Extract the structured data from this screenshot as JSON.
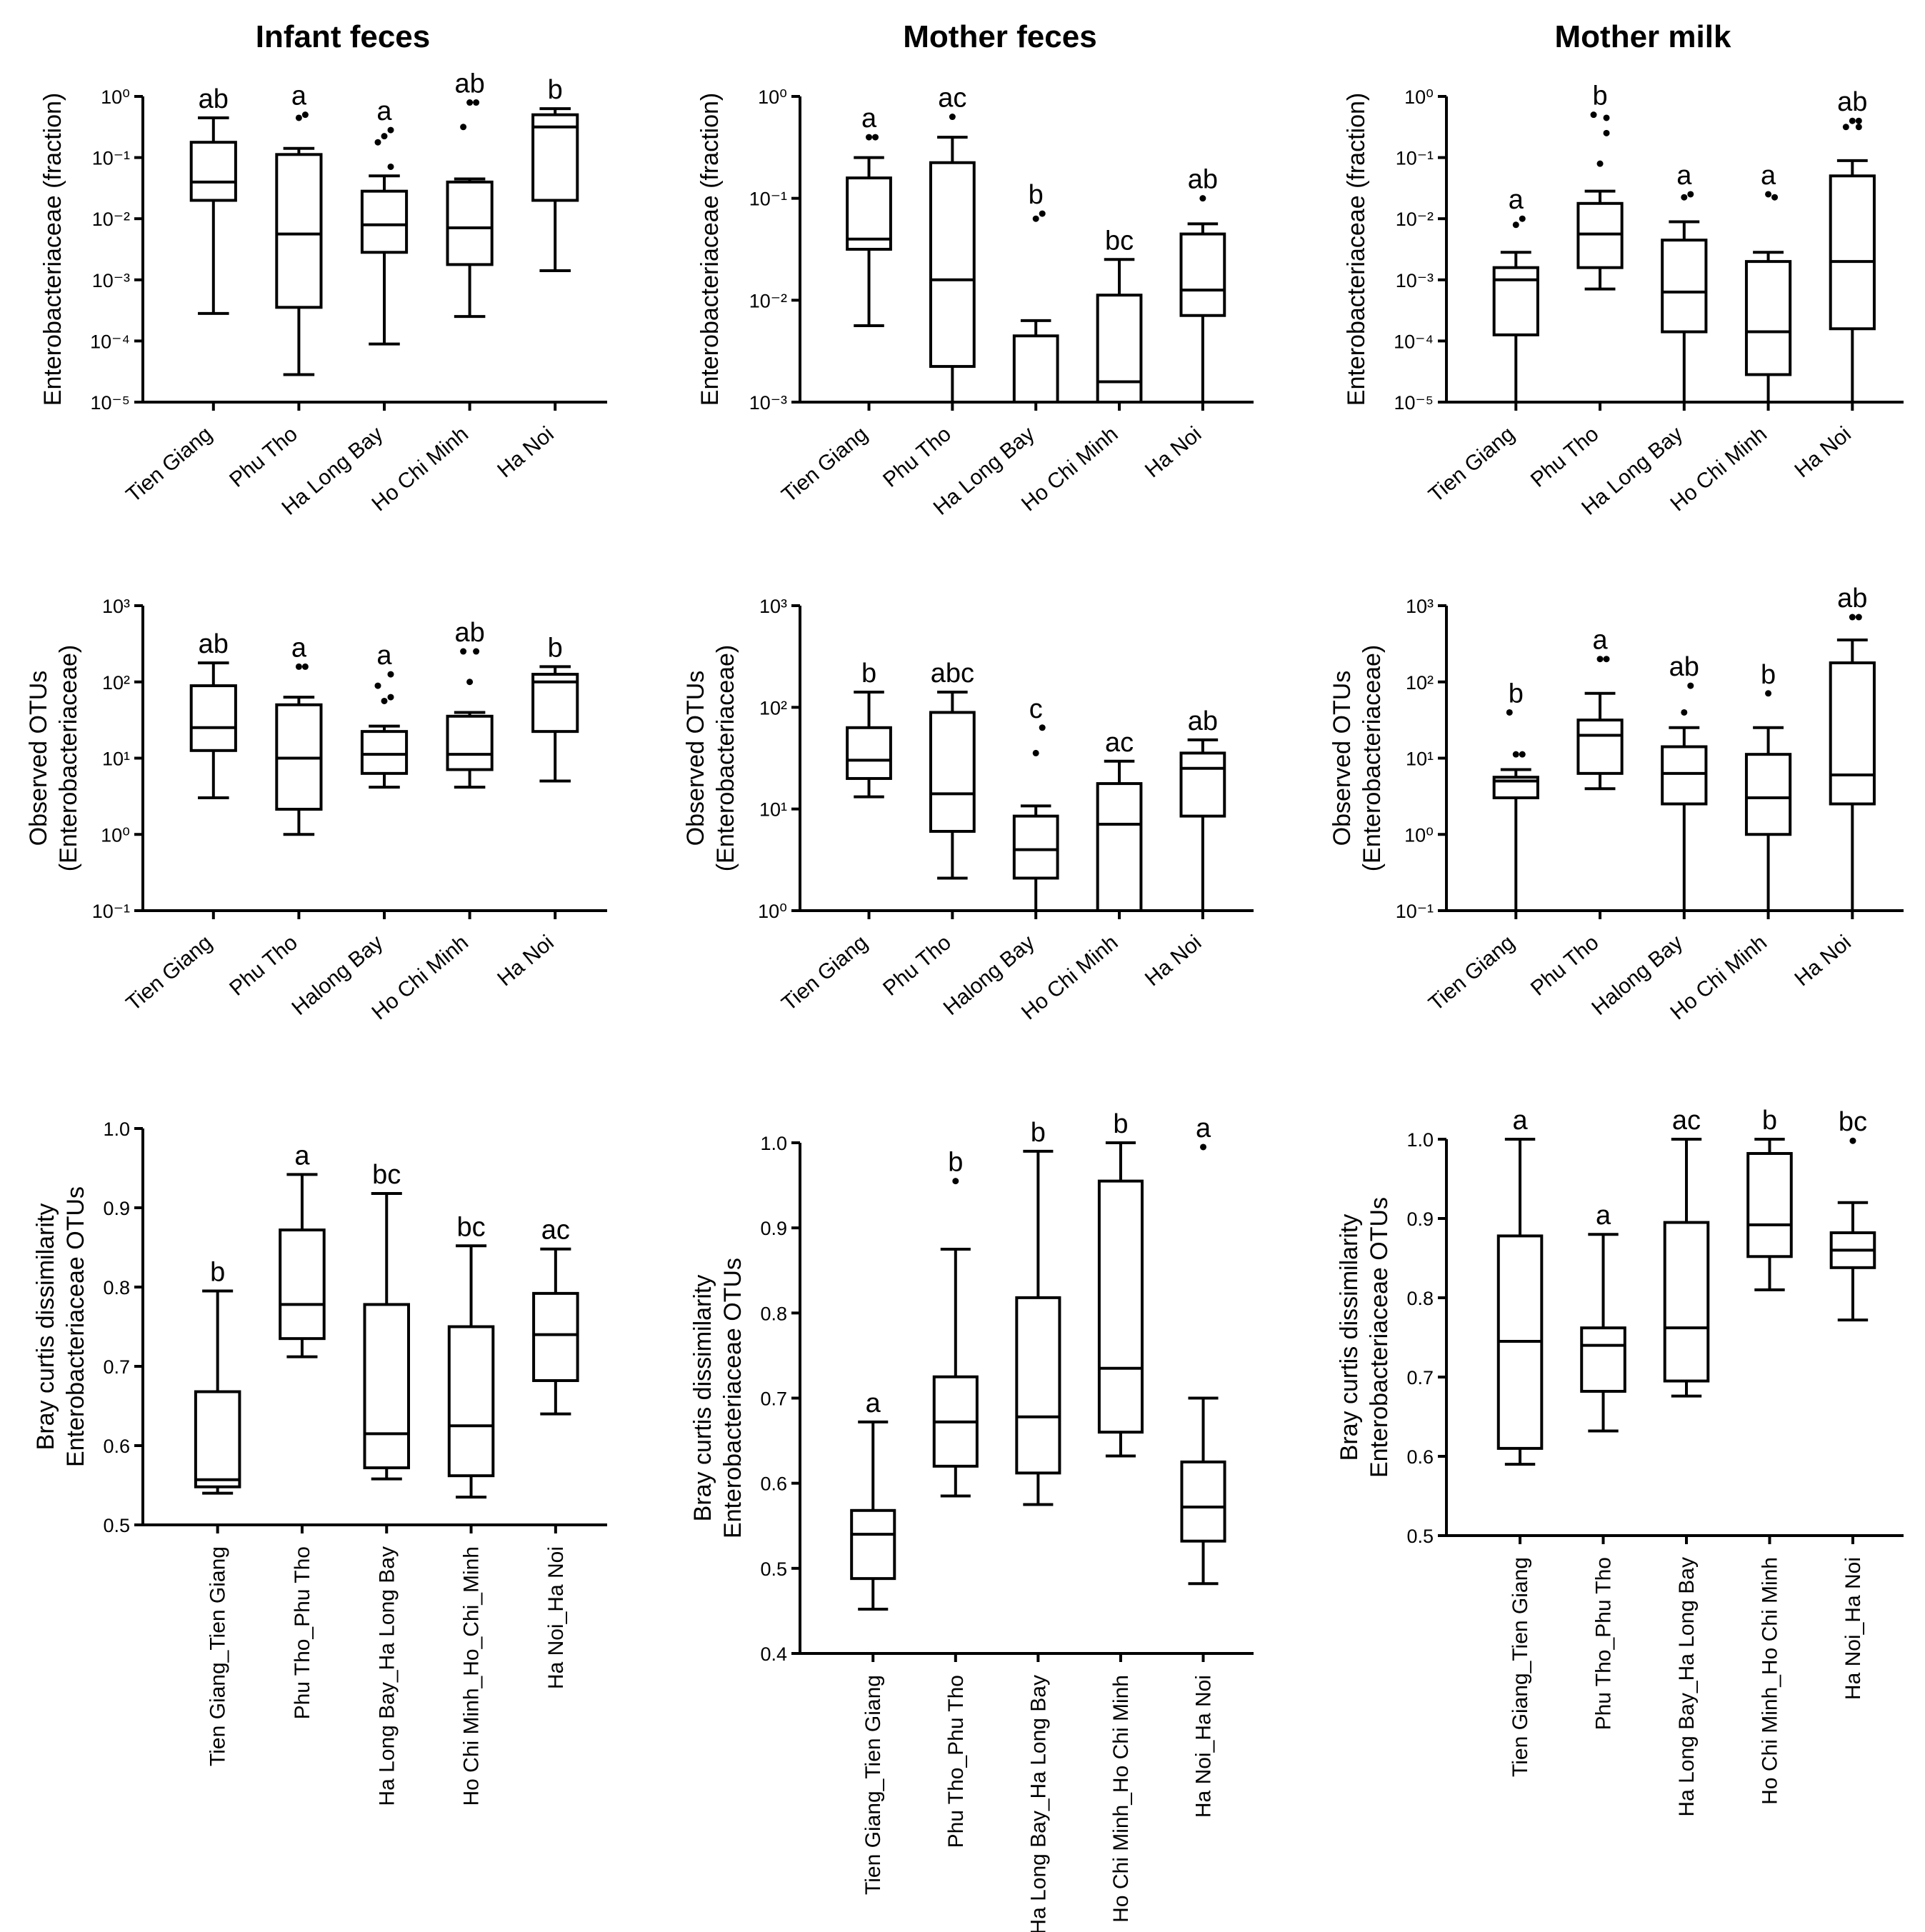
{
  "figure": {
    "column_titles": [
      "Infant feces",
      "Mother feces",
      "Mother milk"
    ]
  },
  "chart_data": [
    {
      "type": "box",
      "row": 0,
      "col": 0,
      "title": "Infant feces",
      "scale": "log",
      "ylabel": [
        "Enterobacteriaceae (fraction)"
      ],
      "ylabel_italic_words": [
        "Enterobacteriaceae"
      ],
      "ylim_exp": [
        -5,
        0
      ],
      "yticks": [
        {
          "v": 0,
          "label": "10⁰"
        },
        {
          "v": -1,
          "label": "10⁻¹"
        },
        {
          "v": -2,
          "label": "10⁻²"
        },
        {
          "v": -3,
          "label": "10⁻³"
        },
        {
          "v": -4,
          "label": "10⁻⁴"
        },
        {
          "v": -5,
          "label": "10⁻⁵"
        }
      ],
      "categories": [
        "Tien Giang",
        "Phu Tho",
        "Ha Long Bay",
        "Ho Chi Minh",
        "Ha Noi"
      ],
      "label_style": "diag",
      "boxes": [
        {
          "min": -3.55,
          "q1": -1.7,
          "median": -1.4,
          "q3": -0.75,
          "max": -0.35,
          "outliers": [],
          "letter": "ab"
        },
        {
          "min": -4.55,
          "q1": -3.45,
          "median": -2.25,
          "q3": -0.95,
          "max": -0.85,
          "outliers": [
            -0.35,
            -0.3
          ],
          "letter": "a"
        },
        {
          "min": -4.05,
          "q1": -2.55,
          "median": -2.1,
          "q3": -1.55,
          "max": -1.3,
          "outliers": [
            -0.65,
            -0.55,
            -0.75,
            -1.15
          ],
          "letter": "a"
        },
        {
          "min": -3.6,
          "q1": -2.75,
          "median": -2.15,
          "q3": -1.4,
          "max": -1.35,
          "outliers": [
            -0.1,
            -0.1,
            -0.5
          ],
          "letter": "ab"
        },
        {
          "min": -2.85,
          "q1": -1.7,
          "median": -0.5,
          "q3": -0.3,
          "max": -0.2,
          "outliers": [],
          "letter": "b"
        }
      ]
    },
    {
      "type": "box",
      "row": 0,
      "col": 1,
      "title": "Mother feces",
      "scale": "log",
      "ylabel": [
        "Enterobacteriaceae (fraction)"
      ],
      "ylabel_italic_words": [
        "Enterobacteriaceae"
      ],
      "ylim_exp": [
        -3,
        0
      ],
      "yticks": [
        {
          "v": 0,
          "label": "10⁰"
        },
        {
          "v": -1,
          "label": "10⁻¹"
        },
        {
          "v": -2,
          "label": "10⁻²"
        },
        {
          "v": -3,
          "label": "10⁻³"
        }
      ],
      "categories": [
        "Tien Giang",
        "Phu Tho",
        "Ha Long Bay",
        "Ho Chi Minh",
        "Ha Noi"
      ],
      "label_style": "diag",
      "boxes": [
        {
          "min": -2.25,
          "q1": -1.5,
          "median": -1.4,
          "q3": -0.8,
          "max": -0.6,
          "outliers": [
            -0.4,
            -0.4
          ],
          "letter": "a"
        },
        {
          "min": -3.0,
          "q1": -2.65,
          "median": -1.8,
          "q3": -0.65,
          "max": -0.4,
          "outliers": [
            -0.2
          ],
          "letter": "ac"
        },
        {
          "min": -3.0,
          "q1": -3.0,
          "median": -3.0,
          "q3": -2.35,
          "max": -2.2,
          "outliers": [
            -1.2,
            -1.15
          ],
          "letter": "b"
        },
        {
          "min": -3.0,
          "q1": -3.0,
          "median": -2.8,
          "q3": -1.95,
          "max": -1.6,
          "outliers": [],
          "letter": "bc"
        },
        {
          "min": -3.0,
          "q1": -2.15,
          "median": -1.9,
          "q3": -1.35,
          "max": -1.25,
          "outliers": [
            -1.0
          ],
          "letter": "ab"
        }
      ]
    },
    {
      "type": "box",
      "row": 0,
      "col": 2,
      "title": "Mother milk",
      "scale": "log",
      "ylabel": [
        "Enterobacteriaceae (fraction)"
      ],
      "ylabel_italic_words": [
        "Enterobacteriaceae"
      ],
      "ylim_exp": [
        -5,
        0
      ],
      "yticks": [
        {
          "v": 0,
          "label": "10⁰"
        },
        {
          "v": -1,
          "label": "10⁻¹"
        },
        {
          "v": -2,
          "label": "10⁻²"
        },
        {
          "v": -3,
          "label": "10⁻³"
        },
        {
          "v": -4,
          "label": "10⁻⁴"
        },
        {
          "v": -5,
          "label": "10⁻⁵"
        }
      ],
      "categories": [
        "Tien Giang",
        "Phu Tho",
        "Ha Long Bay",
        "Ho Chi Minh",
        "Ha Noi"
      ],
      "label_style": "diag",
      "boxes": [
        {
          "min": -5.0,
          "q1": -3.9,
          "median": -3.0,
          "q3": -2.8,
          "max": -2.55,
          "outliers": [
            -2.1,
            -2.0
          ],
          "letter": "a"
        },
        {
          "min": -3.15,
          "q1": -2.8,
          "median": -2.25,
          "q3": -1.75,
          "max": -1.55,
          "outliers": [
            -1.1,
            -0.35,
            -0.3,
            -0.6
          ],
          "letter": "b"
        },
        {
          "min": -5.0,
          "q1": -3.85,
          "median": -3.2,
          "q3": -2.35,
          "max": -2.05,
          "outliers": [
            -1.65,
            -1.6
          ],
          "letter": "a"
        },
        {
          "min": -5.0,
          "q1": -4.55,
          "median": -3.85,
          "q3": -2.7,
          "max": -2.55,
          "outliers": [
            -1.6,
            -1.65
          ],
          "letter": "a"
        },
        {
          "min": -5.0,
          "q1": -3.8,
          "median": -2.7,
          "q3": -1.3,
          "max": -1.05,
          "outliers": [
            -0.4,
            -0.4,
            -0.5,
            -0.5
          ],
          "letter": "ab"
        }
      ]
    },
    {
      "type": "box",
      "row": 1,
      "col": 0,
      "scale": "log",
      "ylabel": [
        "Observed OTUs",
        "(Enterobacteriaceae)"
      ],
      "ylabel_italic_words": [],
      "ylim_exp": [
        -1,
        3
      ],
      "yticks": [
        {
          "v": 3,
          "label": "10³"
        },
        {
          "v": 2,
          "label": "10²"
        },
        {
          "v": 1,
          "label": "10¹"
        },
        {
          "v": 0,
          "label": "10⁰"
        },
        {
          "v": -1,
          "label": "10⁻¹"
        }
      ],
      "categories": [
        "Tien Giang",
        "Phu Tho",
        "Halong Bay",
        "Ho Chi Minh",
        "Ha Noi"
      ],
      "label_style": "diag",
      "boxes": [
        {
          "min": 0.48,
          "q1": 1.1,
          "median": 1.4,
          "q3": 1.95,
          "max": 2.25,
          "outliers": [],
          "letter": "ab"
        },
        {
          "min": 0.0,
          "q1": 0.33,
          "median": 1.0,
          "q3": 1.7,
          "max": 1.8,
          "outliers": [
            2.2,
            2.2
          ],
          "letter": "a"
        },
        {
          "min": 0.62,
          "q1": 0.8,
          "median": 1.05,
          "q3": 1.35,
          "max": 1.42,
          "outliers": [
            1.75,
            1.8,
            1.95,
            2.1
          ],
          "letter": "a"
        },
        {
          "min": 0.62,
          "q1": 0.85,
          "median": 1.05,
          "q3": 1.55,
          "max": 1.6,
          "outliers": [
            2.0,
            2.4,
            2.4
          ],
          "letter": "ab"
        },
        {
          "min": 0.7,
          "q1": 1.35,
          "median": 2.0,
          "q3": 2.1,
          "max": 2.2,
          "outliers": [],
          "letter": "b"
        }
      ]
    },
    {
      "type": "box",
      "row": 1,
      "col": 1,
      "scale": "log",
      "ylabel": [
        "Observed OTUs",
        "(Enterobacteriaceae)"
      ],
      "ylabel_italic_words": [],
      "ylim_exp": [
        0,
        3
      ],
      "yticks": [
        {
          "v": 3,
          "label": "10³"
        },
        {
          "v": 2,
          "label": "10²"
        },
        {
          "v": 1,
          "label": "10¹"
        },
        {
          "v": 0,
          "label": "10⁰"
        }
      ],
      "categories": [
        "Tien Giang",
        "Phu Tho",
        "Halong Bay",
        "Ho Chi Minh",
        "Ha Noi"
      ],
      "label_style": "diag",
      "boxes": [
        {
          "min": 1.12,
          "q1": 1.3,
          "median": 1.48,
          "q3": 1.8,
          "max": 2.15,
          "outliers": [],
          "letter": "b"
        },
        {
          "min": 0.32,
          "q1": 0.78,
          "median": 1.15,
          "q3": 1.95,
          "max": 2.15,
          "outliers": [],
          "letter": "abc"
        },
        {
          "min": 0.0,
          "q1": 0.32,
          "median": 0.6,
          "q3": 0.93,
          "max": 1.03,
          "outliers": [
            1.55,
            1.8
          ],
          "letter": "c"
        },
        {
          "min": 0.0,
          "q1": 0.0,
          "median": 0.85,
          "q3": 1.25,
          "max": 1.47,
          "outliers": [],
          "letter": "ac"
        },
        {
          "min": 0.0,
          "q1": 0.93,
          "median": 1.4,
          "q3": 1.55,
          "max": 1.68,
          "outliers": [],
          "letter": "ab"
        }
      ]
    },
    {
      "type": "box",
      "row": 1,
      "col": 2,
      "scale": "log",
      "ylabel": [
        "Observed OTUs",
        "(Enterobacteriaceae)"
      ],
      "ylabel_italic_words": [],
      "ylim_exp": [
        -1,
        3
      ],
      "yticks": [
        {
          "v": 3,
          "label": "10³"
        },
        {
          "v": 2,
          "label": "10²"
        },
        {
          "v": 1,
          "label": "10¹"
        },
        {
          "v": 0,
          "label": "10⁰"
        },
        {
          "v": -1,
          "label": "10⁻¹"
        }
      ],
      "categories": [
        "Tien Giang",
        "Phu Tho",
        "Halong Bay",
        "Ho Chi Minh",
        "Ha Noi"
      ],
      "label_style": "diag",
      "boxes": [
        {
          "min": -1.0,
          "q1": 0.48,
          "median": 0.7,
          "q3": 0.75,
          "max": 0.85,
          "outliers": [
            1.05,
            1.05,
            1.6
          ],
          "letter": "b"
        },
        {
          "min": 0.6,
          "q1": 0.8,
          "median": 1.3,
          "q3": 1.5,
          "max": 1.85,
          "outliers": [
            2.3,
            2.3
          ],
          "letter": "a"
        },
        {
          "min": -1.0,
          "q1": 0.4,
          "median": 0.8,
          "q3": 1.15,
          "max": 1.4,
          "outliers": [
            1.6,
            1.95
          ],
          "letter": "ab"
        },
        {
          "min": -1.0,
          "q1": 0.0,
          "median": 0.48,
          "q3": 1.05,
          "max": 1.4,
          "outliers": [
            1.85
          ],
          "letter": "b"
        },
        {
          "min": -1.0,
          "q1": 0.4,
          "median": 0.78,
          "q3": 2.25,
          "max": 2.55,
          "outliers": [
            2.85,
            2.85
          ],
          "letter": "ab"
        }
      ]
    },
    {
      "type": "box",
      "row": 2,
      "col": 0,
      "scale": "linear",
      "ylabel": [
        "Bray curtis dissimilarity",
        "Enterobacteriaceae OTUs"
      ],
      "ylabel_italic_words": [],
      "ylim": [
        0.5,
        1.0
      ],
      "yticks": [
        {
          "v": 1.0,
          "label": "1.0"
        },
        {
          "v": 0.9,
          "label": "0.9"
        },
        {
          "v": 0.8,
          "label": "0.8"
        },
        {
          "v": 0.7,
          "label": "0.7"
        },
        {
          "v": 0.6,
          "label": "0.6"
        },
        {
          "v": 0.5,
          "label": "0.5"
        }
      ],
      "categories": [
        "Tien Giang_Tien Giang",
        "Phu Tho_Phu Tho",
        "Ha Long Bay_Ha Long Bay",
        "Ho Chi Minh_Ho_Chi_Minh",
        "Ha Noi_Ha Noi"
      ],
      "label_style": "vert",
      "boxes": [
        {
          "min": 0.54,
          "q1": 0.548,
          "median": 0.557,
          "q3": 0.668,
          "max": 0.795,
          "outliers": [],
          "letter": "b"
        },
        {
          "min": 0.712,
          "q1": 0.735,
          "median": 0.778,
          "q3": 0.872,
          "max": 0.942,
          "outliers": [],
          "letter": "a"
        },
        {
          "min": 0.558,
          "q1": 0.572,
          "median": 0.615,
          "q3": 0.778,
          "max": 0.918,
          "outliers": [],
          "letter": "bc"
        },
        {
          "min": 0.535,
          "q1": 0.562,
          "median": 0.625,
          "q3": 0.75,
          "max": 0.852,
          "outliers": [],
          "letter": "bc"
        },
        {
          "min": 0.64,
          "q1": 0.682,
          "median": 0.74,
          "q3": 0.792,
          "max": 0.848,
          "outliers": [],
          "letter": "ac"
        }
      ]
    },
    {
      "type": "box",
      "row": 2,
      "col": 1,
      "scale": "linear",
      "ylabel": [
        "Bray curtis dissimilarity",
        "Enterobacteriaceae OTUs"
      ],
      "ylabel_italic_words": [],
      "ylim": [
        0.4,
        1.0
      ],
      "yticks": [
        {
          "v": 1.0,
          "label": "1.0"
        },
        {
          "v": 0.9,
          "label": "0.9"
        },
        {
          "v": 0.8,
          "label": "0.8"
        },
        {
          "v": 0.7,
          "label": "0.7"
        },
        {
          "v": 0.6,
          "label": "0.6"
        },
        {
          "v": 0.5,
          "label": "0.5"
        },
        {
          "v": 0.4,
          "label": "0.4"
        }
      ],
      "categories": [
        "Tien Giang_Tien Giang",
        "Phu Tho_Phu Tho",
        "Ha Long Bay_Ha Long Bay",
        "Ho Chi Minh_Ho Chi Minh",
        "Ha Noi_Ha Noi"
      ],
      "label_style": "vert",
      "boxes": [
        {
          "min": 0.452,
          "q1": 0.488,
          "median": 0.54,
          "q3": 0.568,
          "max": 0.672,
          "outliers": [],
          "letter": "a"
        },
        {
          "min": 0.585,
          "q1": 0.62,
          "median": 0.672,
          "q3": 0.725,
          "max": 0.875,
          "outliers": [
            0.955
          ],
          "letter": "b"
        },
        {
          "min": 0.575,
          "q1": 0.612,
          "median": 0.678,
          "q3": 0.818,
          "max": 0.99,
          "outliers": [],
          "letter": "b"
        },
        {
          "min": 0.632,
          "q1": 0.66,
          "median": 0.735,
          "q3": 0.955,
          "max": 1.0,
          "outliers": [],
          "letter": "b"
        },
        {
          "min": 0.482,
          "q1": 0.532,
          "median": 0.572,
          "q3": 0.625,
          "max": 0.7,
          "outliers": [
            0.995
          ],
          "letter": "a"
        }
      ]
    },
    {
      "type": "box",
      "row": 2,
      "col": 2,
      "scale": "linear",
      "ylabel": [
        "Bray curtis dissimilarity",
        "Enterobacteriaceae OTUs"
      ],
      "ylabel_italic_words": [],
      "ylim": [
        0.5,
        1.0
      ],
      "yticks": [
        {
          "v": 1.0,
          "label": "1.0"
        },
        {
          "v": 0.9,
          "label": "0.9"
        },
        {
          "v": 0.8,
          "label": "0.8"
        },
        {
          "v": 0.7,
          "label": "0.7"
        },
        {
          "v": 0.6,
          "label": "0.6"
        },
        {
          "v": 0.5,
          "label": "0.5"
        }
      ],
      "categories": [
        "Tien Giang_Tien Giang",
        "Phu Tho_Phu Tho",
        "Ha Long Bay_Ha Long Bay",
        "Ho Chi Minh_Ho Chi Minh",
        "Ha Noi_Ha Noi"
      ],
      "label_style": "vert",
      "boxes": [
        {
          "min": 0.59,
          "q1": 0.61,
          "median": 0.745,
          "q3": 0.878,
          "max": 1.0,
          "outliers": [],
          "letter": "a"
        },
        {
          "min": 0.632,
          "q1": 0.682,
          "median": 0.74,
          "q3": 0.762,
          "max": 0.88,
          "outliers": [],
          "letter": "a"
        },
        {
          "min": 0.676,
          "q1": 0.695,
          "median": 0.762,
          "q3": 0.895,
          "max": 1.0,
          "outliers": [],
          "letter": "ac"
        },
        {
          "min": 0.81,
          "q1": 0.852,
          "median": 0.892,
          "q3": 0.982,
          "max": 1.0,
          "outliers": [],
          "letter": "b"
        },
        {
          "min": 0.772,
          "q1": 0.838,
          "median": 0.86,
          "q3": 0.882,
          "max": 0.92,
          "outliers": [
            0.998
          ],
          "letter": "bc"
        }
      ]
    }
  ]
}
